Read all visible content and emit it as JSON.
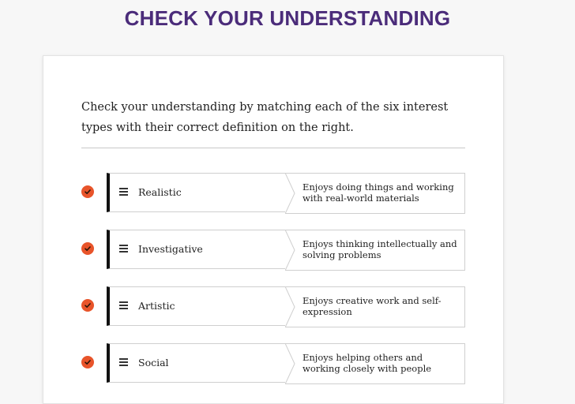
{
  "page": {
    "title": "CHECK YOUR UNDERSTANDING"
  },
  "card": {
    "instructions": "Check your understanding by matching each of the six interest types with their correct definition on the right."
  },
  "matches": [
    {
      "term": "Realistic",
      "definition": "Enjoys doing things and working with real-world materials",
      "status": "correct"
    },
    {
      "term": "Investigative",
      "definition": "Enjoys thinking intellectually and solving problems",
      "status": "correct"
    },
    {
      "term": "Artistic",
      "definition": "Enjoys creative work and self-expression",
      "status": "correct"
    },
    {
      "term": "Social",
      "definition": "Enjoys helping others and working closely with people",
      "status": "correct"
    }
  ],
  "colors": {
    "title": "#4b2c7a",
    "check": "#e8542a",
    "accent_bar": "#111111"
  },
  "icons": {
    "check": "check-circle-icon",
    "drag": "drag-handle-icon"
  }
}
